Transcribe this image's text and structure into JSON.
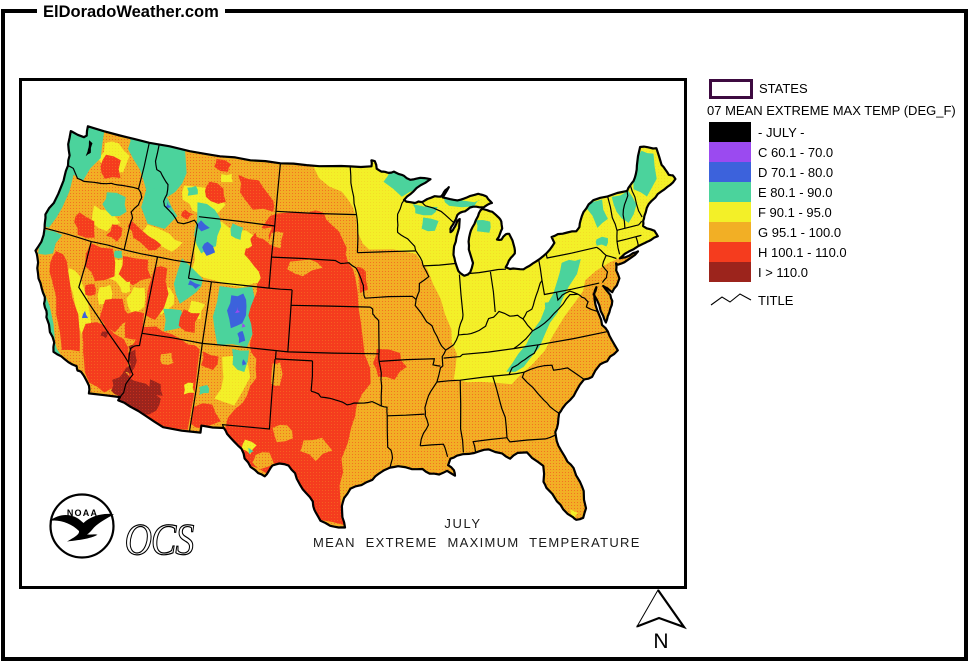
{
  "brand": "ElDoradoWeather.com",
  "map": {
    "caption_line1": "JULY",
    "caption_line2": "MEAN EXTREME MAXIMUM TEMPERATURE",
    "agency": "NOAA",
    "org": "OCS"
  },
  "legend": {
    "states_label": "STATES",
    "states_border_color": "#3d0a40",
    "header": "07 MEAN EXTREME MAX TEMP (DEG_F)",
    "rows": [
      {
        "key": "JULY",
        "label": "- JULY -",
        "color": "#000000"
      },
      {
        "key": "C",
        "label": "C 60.1 - 70.0",
        "color": "#9b4af0"
      },
      {
        "key": "D",
        "label": "D 70.1 - 80.0",
        "color": "#3c62dc"
      },
      {
        "key": "E",
        "label": "E 80.1 - 90.0",
        "color": "#4bd39c"
      },
      {
        "key": "F",
        "label": "F 90.1 - 95.0",
        "color": "#f3f028"
      },
      {
        "key": "G",
        "label": "G 95.1 - 100.0",
        "color": "#f2af25"
      },
      {
        "key": "H",
        "label": "H 100.1 - 110.0",
        "color": "#f53c1e"
      },
      {
        "key": "I",
        "label": "I > 110.0",
        "color": "#9c241c"
      }
    ],
    "title_label": "TITLE"
  },
  "compass": {
    "label": "N"
  },
  "palette": {
    "C": "#9b4af0",
    "D": "#3c62dc",
    "E": "#4bd39c",
    "F": "#f3f028",
    "G": "#f2af25",
    "H": "#f53c1e",
    "I": "#9c241c"
  }
}
